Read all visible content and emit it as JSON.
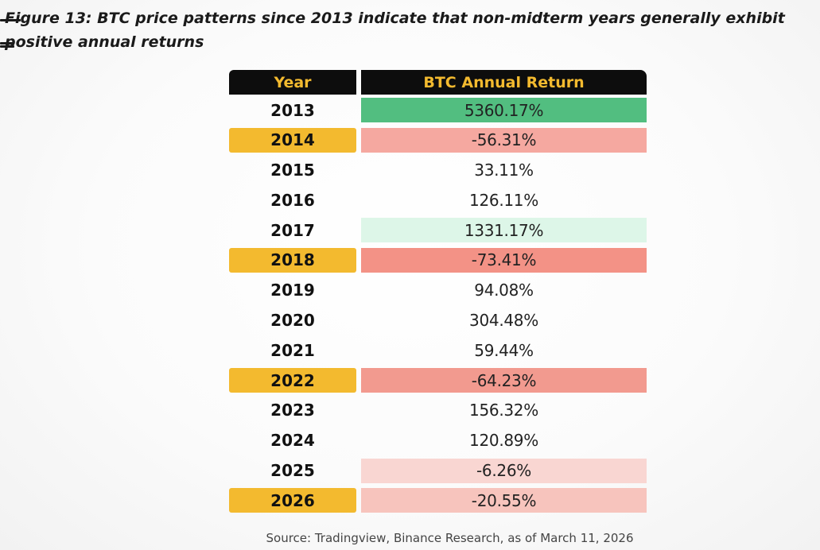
{
  "figure": {
    "title": "Figure 13: BTC price patterns since 2013 indicate that non-midterm years generally exhibit positive annual returns",
    "source": "Source: Tradingview, Binance Research, as of March 11, 2026"
  },
  "colors": {
    "header_bg": "#0d0d0d",
    "header_text": "#F3BA2F",
    "midterm_year_bg": "#F3BA2F"
  },
  "chart_data": {
    "type": "table",
    "title": "Figure 13: BTC price patterns since 2013 indicate that non-midterm years generally exhibit positive annual returns",
    "columns": [
      "Year",
      "BTC Annual Return"
    ],
    "rows": [
      {
        "year": "2013",
        "return": "5360.17%",
        "value": 5360.17,
        "midterm": false,
        "color": "#52be80"
      },
      {
        "year": "2014",
        "return": "-56.31%",
        "value": -56.31,
        "midterm": true,
        "color": "#f5a8a0"
      },
      {
        "year": "2015",
        "return": "33.11%",
        "value": 33.11,
        "midterm": false,
        "color": ""
      },
      {
        "year": "2016",
        "return": "126.11%",
        "value": 126.11,
        "midterm": false,
        "color": ""
      },
      {
        "year": "2017",
        "return": "1331.17%",
        "value": 1331.17,
        "midterm": false,
        "color": "#ddf6e8"
      },
      {
        "year": "2018",
        "return": "-73.41%",
        "value": -73.41,
        "midterm": true,
        "color": "#f39286"
      },
      {
        "year": "2019",
        "return": "94.08%",
        "value": 94.08,
        "midterm": false,
        "color": ""
      },
      {
        "year": "2020",
        "return": "304.48%",
        "value": 304.48,
        "midterm": false,
        "color": ""
      },
      {
        "year": "2021",
        "return": "59.44%",
        "value": 59.44,
        "midterm": false,
        "color": ""
      },
      {
        "year": "2022",
        "return": "-64.23%",
        "value": -64.23,
        "midterm": true,
        "color": "#f29a8f"
      },
      {
        "year": "2023",
        "return": "156.32%",
        "value": 156.32,
        "midterm": false,
        "color": ""
      },
      {
        "year": "2024",
        "return": "120.89%",
        "value": 120.89,
        "midterm": false,
        "color": ""
      },
      {
        "year": "2025",
        "return": "-6.26%",
        "value": -6.26,
        "midterm": false,
        "color": "#f9d6d2"
      },
      {
        "year": "2026",
        "return": "-20.55%",
        "value": -20.55,
        "midterm": true,
        "color": "#f7c4bd"
      }
    ]
  }
}
